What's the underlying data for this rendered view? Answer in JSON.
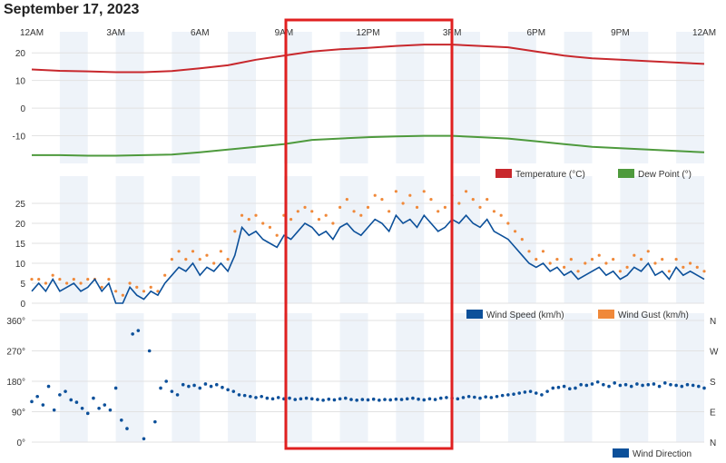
{
  "page": {
    "title": "September 17, 2023"
  },
  "colors": {
    "temperature": "#c8282d",
    "dew_point": "#4e9a3d",
    "wind_speed": "#0c509a",
    "wind_gust": "#f0893a",
    "wind_direction": "#0c509a",
    "highlight": "#e02020",
    "band": "#eef3f9"
  },
  "chart_data": [
    {
      "type": "line",
      "panel": "temperature",
      "x_ticks": [
        "12AM",
        "3AM",
        "6AM",
        "9AM",
        "12PM",
        "3PM",
        "6PM",
        "9PM",
        "12AM"
      ],
      "ylim": [
        -20,
        25
      ],
      "y_ticks": [
        20,
        10,
        0,
        -10
      ],
      "grid": true,
      "legend": "bottom-right",
      "hours": [
        0,
        1,
        2,
        3,
        4,
        5,
        6,
        7,
        8,
        9,
        10,
        11,
        12,
        13,
        14,
        15,
        16,
        17,
        18,
        19,
        20,
        21,
        22,
        23,
        24
      ],
      "series": [
        {
          "name": "Temperature (°C)",
          "color": "#c8282d",
          "values": [
            14,
            13.5,
            13.3,
            13,
            13,
            13.4,
            14.4,
            15.5,
            17.5,
            19,
            20.5,
            21.3,
            21.8,
            22.5,
            23,
            23,
            22.5,
            22,
            20.5,
            19,
            18,
            17.5,
            17,
            16.5,
            16
          ]
        },
        {
          "name": "Dew Point (°)",
          "color": "#4e9a3d",
          "values": [
            -17,
            -17,
            -17.2,
            -17.2,
            -17,
            -16.8,
            -16,
            -15,
            -14,
            -13,
            -11.5,
            -11,
            -10.5,
            -10.2,
            -10,
            -10,
            -10.5,
            -11,
            -12,
            -13,
            -14,
            -14.5,
            -15,
            -15.5,
            -16
          ]
        }
      ]
    },
    {
      "type": "line",
      "panel": "wind",
      "ylim": [
        0,
        30
      ],
      "y_ticks": [
        25,
        20,
        15,
        10,
        5,
        0
      ],
      "grid": true,
      "legend": "bottom-right",
      "series": [
        {
          "name": "Wind Speed (km/h)",
          "color": "#0c509a",
          "x_hours": [
            0.0,
            0.25,
            0.5,
            0.75,
            1.0,
            1.25,
            1.5,
            1.75,
            2.0,
            2.25,
            2.5,
            2.75,
            3.0,
            3.25,
            3.5,
            3.75,
            4.0,
            4.25,
            4.5,
            4.75,
            5.0,
            5.25,
            5.5,
            5.75,
            6.0,
            6.25,
            6.5,
            6.75,
            7.0,
            7.25,
            7.5,
            7.75,
            8.0,
            8.25,
            8.5,
            8.75,
            9.0,
            9.25,
            9.5,
            9.75,
            10.0,
            10.25,
            10.5,
            10.75,
            11.0,
            11.25,
            11.5,
            11.75,
            12.0,
            12.25,
            12.5,
            12.75,
            13.0,
            13.25,
            13.5,
            13.75,
            14.0,
            14.25,
            14.5,
            14.75,
            15.0,
            15.25,
            15.5,
            15.75,
            16.0,
            16.25,
            16.5,
            16.75,
            17.0,
            17.25,
            17.5,
            17.75,
            18.0,
            18.25,
            18.5,
            18.75,
            19.0,
            19.25,
            19.5,
            19.75,
            20.0,
            20.25,
            20.5,
            20.75,
            21.0,
            21.25,
            21.5,
            21.75,
            22.0,
            22.25,
            22.5,
            22.75,
            23.0,
            23.25,
            23.5,
            23.75,
            24.0
          ],
          "values": [
            3,
            5,
            3,
            6,
            3,
            4,
            5,
            3,
            4,
            6,
            3,
            5,
            0,
            0,
            4,
            2,
            1,
            3,
            2,
            5,
            7,
            9,
            8,
            10,
            7,
            9,
            8,
            10,
            8,
            12,
            19,
            17,
            18,
            16,
            15,
            14,
            17,
            16,
            18,
            20,
            19,
            17,
            18,
            16,
            19,
            20,
            18,
            17,
            19,
            21,
            20,
            18,
            22,
            20,
            21,
            19,
            22,
            20,
            18,
            19,
            21,
            20,
            22,
            20,
            19,
            21,
            18,
            17,
            16,
            14,
            12,
            10,
            9,
            10,
            8,
            9,
            7,
            8,
            6,
            7,
            8,
            9,
            7,
            8,
            6,
            7,
            9,
            8,
            10,
            7,
            8,
            6,
            9,
            7,
            8,
            7,
            6
          ]
        },
        {
          "name": "Wind Gust (km/h)",
          "color": "#f0893a",
          "x_hours": [
            0.0,
            0.25,
            0.5,
            0.75,
            1.0,
            1.25,
            1.5,
            1.75,
            2.0,
            2.25,
            2.5,
            2.75,
            3.0,
            3.25,
            3.5,
            3.75,
            4.0,
            4.25,
            4.5,
            4.75,
            5.0,
            5.25,
            5.5,
            5.75,
            6.0,
            6.25,
            6.5,
            6.75,
            7.0,
            7.25,
            7.5,
            7.75,
            8.0,
            8.25,
            8.5,
            8.75,
            9.0,
            9.25,
            9.5,
            9.75,
            10.0,
            10.25,
            10.5,
            10.75,
            11.0,
            11.25,
            11.5,
            11.75,
            12.0,
            12.25,
            12.5,
            12.75,
            13.0,
            13.25,
            13.5,
            13.75,
            14.0,
            14.25,
            14.5,
            14.75,
            15.0,
            15.25,
            15.5,
            15.75,
            16.0,
            16.25,
            16.5,
            16.75,
            17.0,
            17.25,
            17.5,
            17.75,
            18.0,
            18.25,
            18.5,
            18.75,
            19.0,
            19.25,
            19.5,
            19.75,
            20.0,
            20.25,
            20.5,
            20.75,
            21.0,
            21.25,
            21.5,
            21.75,
            22.0,
            22.25,
            22.5,
            22.75,
            23.0,
            23.25,
            23.5,
            23.75,
            24.0
          ],
          "values": [
            6,
            6,
            5,
            7,
            6,
            5,
            6,
            5,
            6,
            6,
            4,
            6,
            3,
            2,
            5,
            4,
            3,
            4,
            3,
            7,
            11,
            13,
            11,
            13,
            11,
            12,
            10,
            13,
            11,
            18,
            22,
            21,
            22,
            20,
            19,
            17,
            22,
            21,
            23,
            24,
            23,
            21,
            22,
            20,
            24,
            26,
            23,
            22,
            24,
            27,
            26,
            23,
            28,
            25,
            27,
            24,
            28,
            26,
            23,
            24,
            27,
            25,
            28,
            26,
            24,
            26,
            23,
            22,
            20,
            18,
            16,
            13,
            11,
            13,
            10,
            11,
            9,
            11,
            8,
            10,
            11,
            12,
            10,
            11,
            8,
            9,
            12,
            11,
            13,
            10,
            11,
            8,
            11,
            9,
            10,
            9,
            8
          ]
        }
      ]
    },
    {
      "type": "scatter",
      "panel": "wind_direction",
      "ylim": [
        0,
        360
      ],
      "y_ticks": [
        "360°",
        "270°",
        "180°",
        "90°",
        "0°"
      ],
      "y_ticks_right": [
        "N",
        "W",
        "S",
        "E",
        "N"
      ],
      "grid": true,
      "legend": "bottom-right",
      "series": [
        {
          "name": "Wind Direction",
          "color": "#0c509a",
          "x_hours": [
            0.0,
            0.2,
            0.4,
            0.6,
            0.8,
            1.0,
            1.2,
            1.4,
            1.6,
            1.8,
            2.0,
            2.2,
            2.4,
            2.6,
            2.8,
            3.0,
            3.2,
            3.4,
            3.6,
            3.8,
            4.0,
            4.2,
            4.4,
            4.6,
            4.8,
            5.0,
            5.2,
            5.4,
            5.6,
            5.8,
            6.0,
            6.2,
            6.4,
            6.6,
            6.8,
            7.0,
            7.2,
            7.4,
            7.6,
            7.8,
            8.0,
            8.2,
            8.4,
            8.6,
            8.8,
            9.0,
            9.2,
            9.4,
            9.6,
            9.8,
            10.0,
            10.2,
            10.4,
            10.6,
            10.8,
            11.0,
            11.2,
            11.4,
            11.6,
            11.8,
            12.0,
            12.2,
            12.4,
            12.6,
            12.8,
            13.0,
            13.2,
            13.4,
            13.6,
            13.8,
            14.0,
            14.2,
            14.4,
            14.6,
            14.8,
            15.0,
            15.2,
            15.4,
            15.6,
            15.8,
            16.0,
            16.2,
            16.4,
            16.6,
            16.8,
            17.0,
            17.2,
            17.4,
            17.6,
            17.8,
            18.0,
            18.2,
            18.4,
            18.6,
            18.8,
            19.0,
            19.2,
            19.4,
            19.6,
            19.8,
            20.0,
            20.2,
            20.4,
            20.6,
            20.8,
            21.0,
            21.2,
            21.4,
            21.6,
            21.8,
            22.0,
            22.2,
            22.4,
            22.6,
            22.8,
            23.0,
            23.2,
            23.4,
            23.6,
            23.8,
            24.0
          ],
          "values": [
            120,
            135,
            110,
            165,
            95,
            140,
            150,
            125,
            118,
            100,
            85,
            130,
            100,
            110,
            95,
            160,
            65,
            40,
            320,
            330,
            10,
            270,
            60,
            160,
            180,
            150,
            140,
            170,
            165,
            168,
            160,
            172,
            165,
            170,
            162,
            155,
            150,
            140,
            138,
            135,
            132,
            135,
            130,
            128,
            132,
            128,
            130,
            126,
            128,
            130,
            128,
            126,
            124,
            127,
            125,
            128,
            130,
            126,
            124,
            126,
            125,
            127,
            124,
            126,
            125,
            127,
            126,
            128,
            130,
            127,
            125,
            128,
            126,
            130,
            132,
            130,
            128,
            132,
            135,
            133,
            130,
            134,
            132,
            135,
            138,
            140,
            142,
            145,
            148,
            150,
            145,
            140,
            150,
            160,
            162,
            165,
            158,
            160,
            170,
            168,
            172,
            178,
            170,
            165,
            175,
            168,
            170,
            165,
            172,
            168,
            170,
            172,
            165,
            175,
            170,
            168,
            165,
            170,
            168,
            165,
            160
          ]
        }
      ]
    }
  ]
}
